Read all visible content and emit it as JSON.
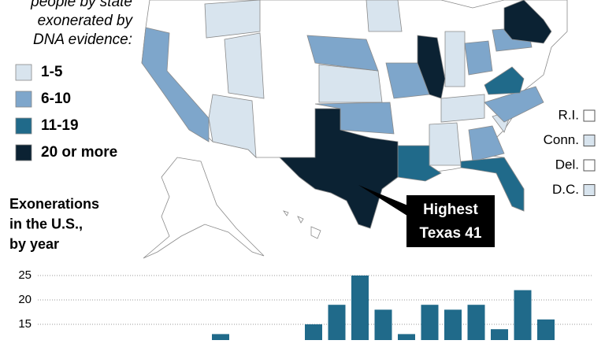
{
  "legend": {
    "title_lines": [
      "people by state",
      "exonerated by",
      "DNA evidence:"
    ],
    "items": [
      {
        "name": "1-5",
        "color": "#d8e4ee"
      },
      {
        "name": "6-10",
        "color": "#7ea6cb"
      },
      {
        "name": "11-19",
        "color": "#206a8a"
      },
      {
        "name": "20 or more",
        "color": "#0b2233"
      }
    ]
  },
  "small_states": [
    {
      "name": "R.I.",
      "color": "#ffffff"
    },
    {
      "name": "Conn.",
      "color": "#d8e4ee"
    },
    {
      "name": "Del.",
      "color": "#ffffff"
    },
    {
      "name": "D.C.",
      "color": "#d8e4ee"
    }
  ],
  "callout": {
    "lines": [
      "Highest",
      "Texas 41"
    ]
  },
  "chart_data": {
    "type": "bar",
    "title_lines": [
      "Exonerations",
      "in the U.S.,",
      "by year"
    ],
    "categories": [
      null,
      null,
      null,
      null,
      null,
      null,
      null,
      null,
      null,
      null,
      null,
      null,
      null,
      null,
      null
    ],
    "values": [
      13,
      null,
      null,
      null,
      15,
      19,
      25,
      18,
      13,
      19,
      18,
      19,
      14,
      22,
      16
    ],
    "color": "#206a8a",
    "ylim": [
      10,
      27
    ],
    "yticks": [
      25,
      20,
      15
    ],
    "grid": true
  }
}
